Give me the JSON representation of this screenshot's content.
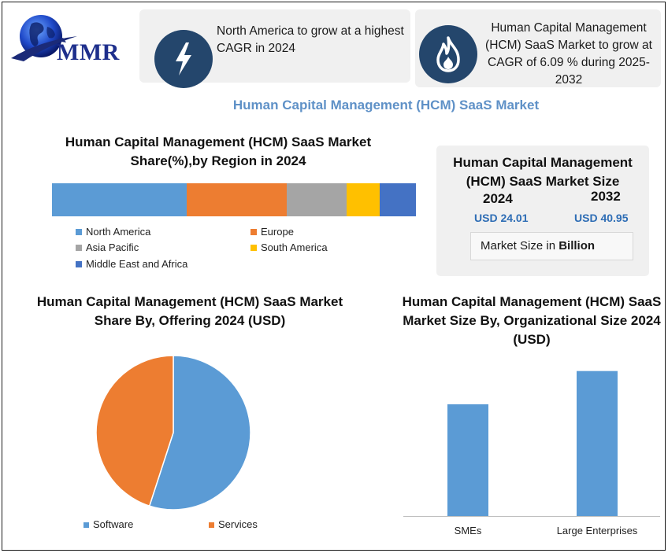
{
  "brand": {
    "logo_text": "MMR"
  },
  "cards": [
    {
      "icon": "lightning-bolt-icon",
      "text": "North America to grow at a highest CAGR in 2024"
    },
    {
      "icon": "flame-icon",
      "text": "Human Capital Management (HCM) SaaS Market to grow at CAGR of 6.09 % during 2025-2032"
    }
  ],
  "main_title": "Human Capital Management (HCM) SaaS Market",
  "market_size": {
    "title": "Human Capital Management (HCM) SaaS Market Size",
    "year1": "2024",
    "year2": "2032",
    "value1": "USD 24.01",
    "value2": "USD 40.95",
    "unit_prefix": "Market Size in ",
    "unit_bold": "Billion"
  },
  "colors": {
    "north_america": "#5b9bd5",
    "europe": "#ed7d31",
    "asia_pacific": "#a5a5a5",
    "south_america": "#ffc000",
    "mea": "#4472c4",
    "card_icon": "#24466c",
    "title_blue": "#5f91c7"
  },
  "chart_data": [
    {
      "type": "bar",
      "stacked": true,
      "orientation": "horizontal",
      "title": "Human Capital Management (HCM) SaaS Market Share(%),by Region in 2024",
      "series": [
        {
          "name": "North America",
          "values": [
            37
          ]
        },
        {
          "name": "Europe",
          "values": [
            27.5
          ]
        },
        {
          "name": "Asia Pacific",
          "values": [
            16.5
          ]
        },
        {
          "name": "South America",
          "values": [
            9
          ]
        },
        {
          "name": "Middle East and Africa",
          "values": [
            10
          ]
        }
      ],
      "legend": "bottom"
    },
    {
      "type": "pie",
      "title": "Human Capital Management (HCM) SaaS Market  Share By, Offering 2024  (USD)",
      "categories": [
        "Software",
        "Services"
      ],
      "values": [
        55,
        45
      ],
      "legend": "bottom"
    },
    {
      "type": "bar",
      "title": "Human Capital Management (HCM) SaaS Market Size By, Organizational Size 2024  (USD)",
      "categories": [
        "SMEs",
        "Large Enterprises"
      ],
      "values": [
        74,
        96
      ],
      "ylim": [
        0,
        100
      ],
      "grid": false
    }
  ]
}
